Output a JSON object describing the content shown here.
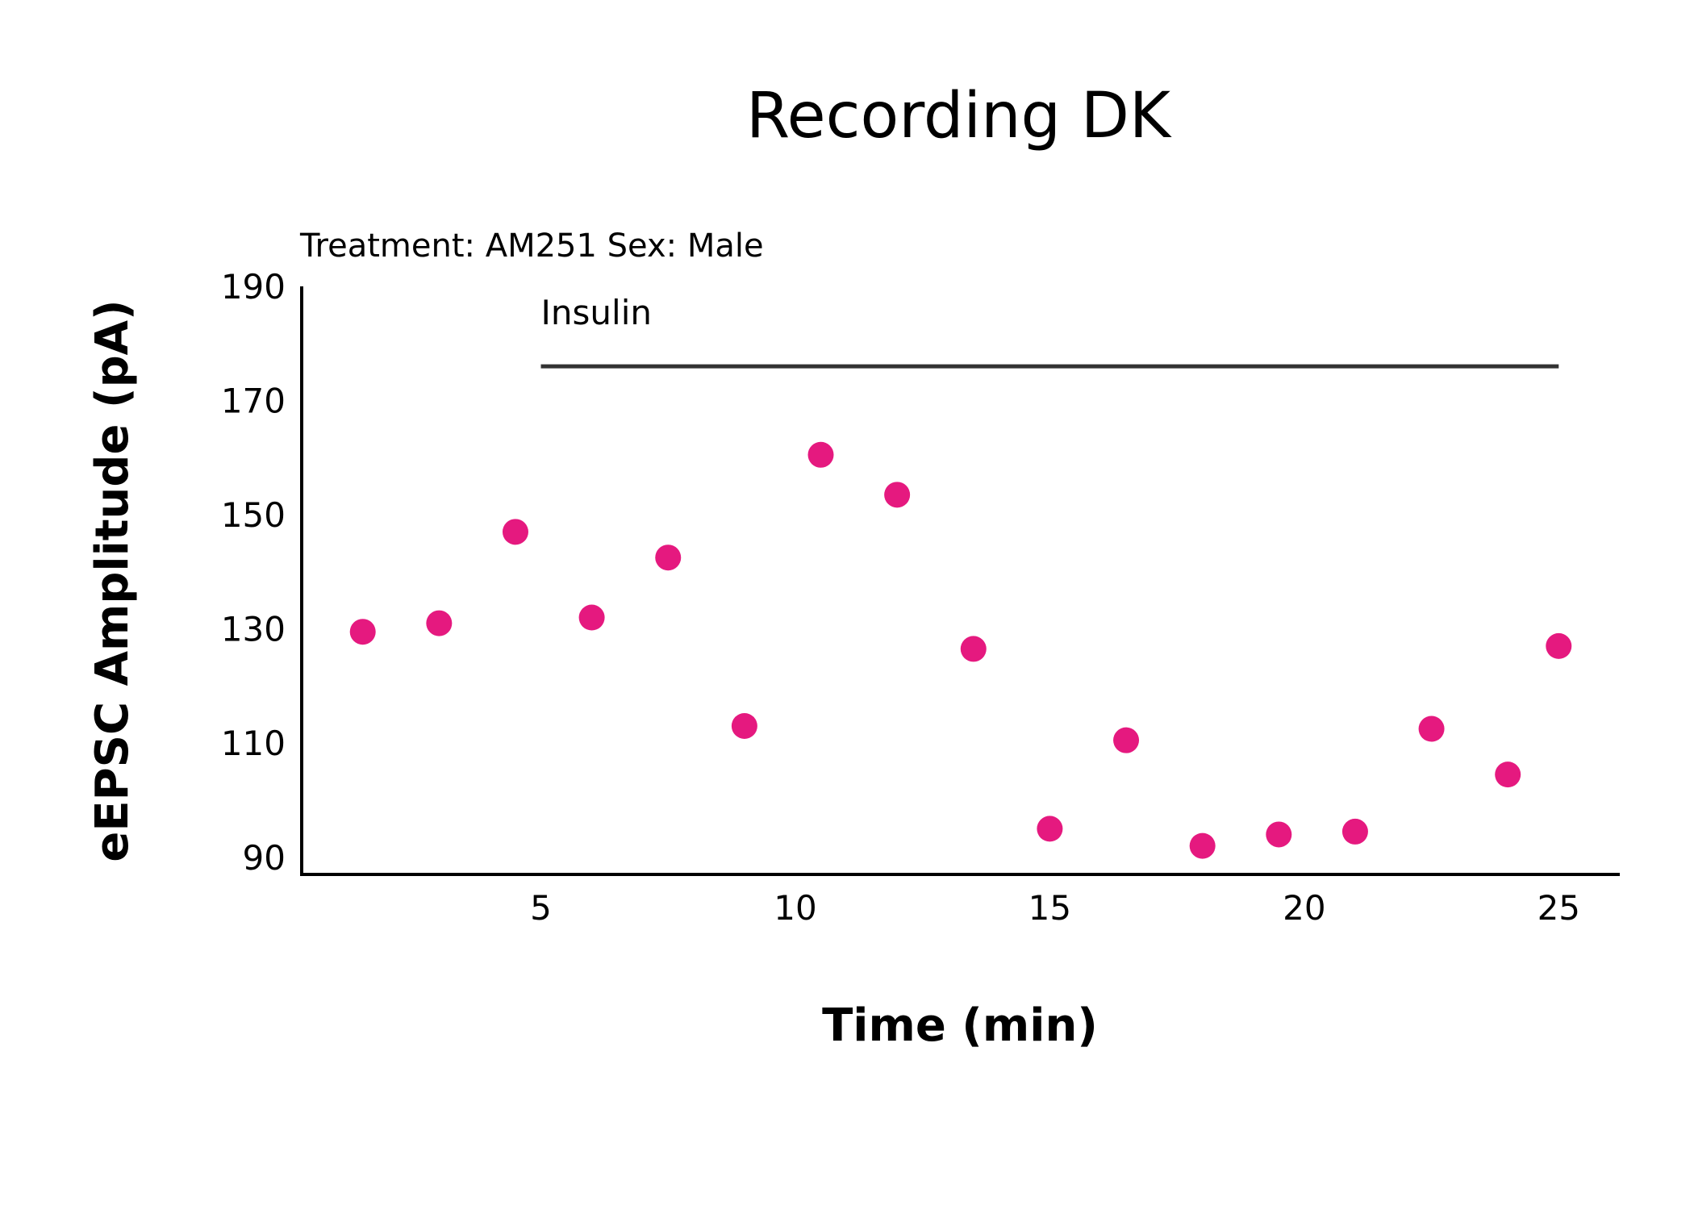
{
  "chart_data": {
    "type": "scatter",
    "title": "Recording DK",
    "subtitle": "Treatment: AM251  Sex: Male",
    "xlabel": "Time (min)",
    "ylabel": "eEPSC Amplitude (pA)",
    "xlim": [
      0.3,
      26.2
    ],
    "ylim": [
      87,
      190
    ],
    "x_ticks": [
      5,
      10,
      15,
      20,
      25
    ],
    "y_ticks": [
      90,
      110,
      130,
      150,
      170,
      190
    ],
    "grid": false,
    "legend": "none",
    "marker_color": "#e5197f",
    "series": [
      {
        "x": [
          1.5,
          3,
          4.5,
          6,
          7.5,
          9,
          10.5,
          12,
          13.5,
          15,
          16.5,
          18,
          19.5,
          21,
          22.5,
          24,
          25
        ],
        "y": [
          129.5,
          131,
          147,
          132,
          142.5,
          113,
          160.5,
          153.5,
          126.5,
          95,
          110.5,
          92,
          94,
          94.5,
          112.5,
          104.5,
          127
        ]
      }
    ],
    "annotations": [
      {
        "text": "Insulin",
        "x_start": 5,
        "x_end": 25,
        "y": 176
      }
    ]
  }
}
